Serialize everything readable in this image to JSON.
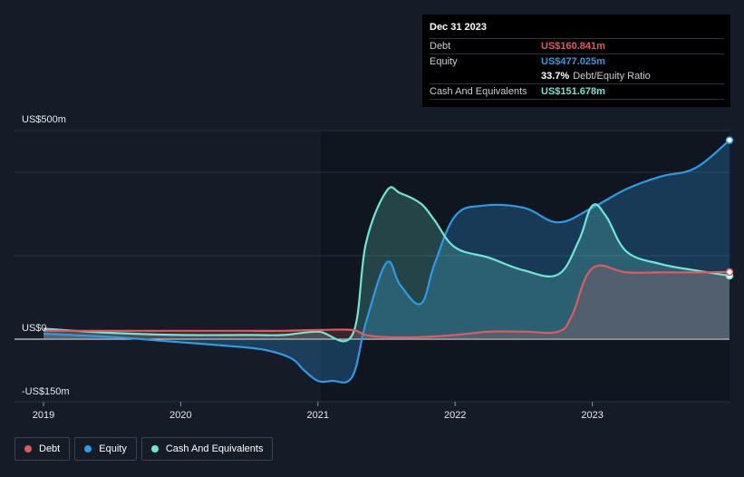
{
  "tooltip": {
    "date": "Dec 31 2023",
    "rows": [
      {
        "label": "Debt",
        "value": "US$160.841m",
        "color": "#e05a5f"
      },
      {
        "label": "Equity",
        "value": "US$477.025m",
        "color": "#2f9ae3"
      },
      {
        "label": "",
        "value": "33.7%",
        "suffix": "Debt/Equity Ratio",
        "color": "#ffffff"
      },
      {
        "label": "Cash And Equivalents",
        "value": "US$151.678m",
        "color": "#6ee7d6"
      }
    ]
  },
  "legend": [
    {
      "label": "Debt",
      "color": "#e05a5f"
    },
    {
      "label": "Equity",
      "color": "#2f9ae3"
    },
    {
      "label": "Cash And Equivalents",
      "color": "#6ee7d6"
    }
  ],
  "chart_data": {
    "type": "area",
    "title": "",
    "xlabel": "",
    "ylabel": "",
    "ylim": [
      -150,
      500
    ],
    "xlim": [
      2019,
      2024.0
    ],
    "y_tick_labels": [
      {
        "value": 500,
        "label": "US$500m"
      },
      {
        "value": 0,
        "label": "US$0"
      },
      {
        "value": -150,
        "label": "-US$150m"
      }
    ],
    "x_tick_labels": [
      {
        "value": 2019,
        "label": "2019"
      },
      {
        "value": 2020,
        "label": "2020"
      },
      {
        "value": 2021,
        "label": "2021"
      },
      {
        "value": 2022,
        "label": "2022"
      },
      {
        "value": 2023,
        "label": "2023"
      }
    ],
    "series": [
      {
        "name": "Equity",
        "color": "#2f9ae3",
        "x": [
          2019.0,
          2019.5,
          2019.9,
          2020.3,
          2020.6,
          2020.8,
          2020.9,
          2021.0,
          2021.1,
          2021.25,
          2021.35,
          2021.5,
          2021.6,
          2021.75,
          2021.85,
          2022.0,
          2022.2,
          2022.5,
          2022.75,
          2023.0,
          2023.25,
          2023.5,
          2023.75,
          2024.0
        ],
        "y": [
          13,
          5,
          -5,
          -15,
          -25,
          -45,
          -75,
          -100,
          -100,
          -90,
          40,
          183,
          130,
          85,
          180,
          295,
          320,
          315,
          280,
          315,
          360,
          390,
          410,
          477
        ]
      },
      {
        "name": "Cash And Equivalents",
        "color": "#6ee7d6",
        "x": [
          2019.0,
          2019.5,
          2020.0,
          2020.5,
          2020.75,
          2021.0,
          2021.25,
          2021.35,
          2021.5,
          2021.6,
          2021.75,
          2021.85,
          2022.0,
          2022.25,
          2022.5,
          2022.75,
          2022.9,
          2023.0,
          2023.1,
          2023.25,
          2023.5,
          2023.75,
          2024.0
        ],
        "y": [
          25,
          15,
          10,
          10,
          10,
          18,
          10,
          230,
          355,
          350,
          325,
          285,
          220,
          195,
          165,
          155,
          235,
          320,
          295,
          210,
          180,
          165,
          152
        ]
      },
      {
        "name": "Debt",
        "color": "#e05a5f",
        "x": [
          2019.0,
          2019.5,
          2020.0,
          2020.5,
          2020.75,
          2021.0,
          2021.25,
          2021.35,
          2021.5,
          2021.75,
          2022.0,
          2022.25,
          2022.5,
          2022.75,
          2022.85,
          2023.0,
          2023.25,
          2023.5,
          2023.75,
          2024.0
        ],
        "y": [
          20,
          20,
          20,
          20,
          20,
          22,
          22,
          10,
          5,
          5,
          10,
          18,
          18,
          18,
          55,
          170,
          160,
          160,
          160,
          161
        ]
      }
    ],
    "highlight_x": 2024.0
  }
}
